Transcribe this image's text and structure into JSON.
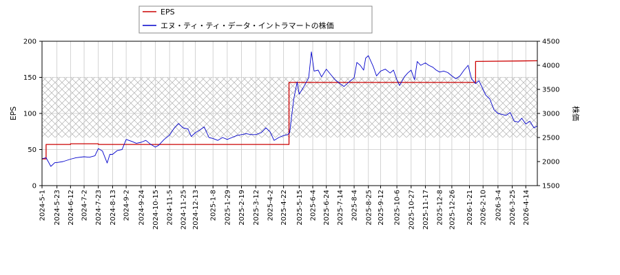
{
  "chart_data": {
    "type": "line",
    "legend": {
      "placement": "top-center",
      "entries": [
        {
          "label": "EPS",
          "color": "#cc0000"
        },
        {
          "label": "エヌ・ティ・ティ・データ・イントラマートの株価",
          "color": "#0000cc"
        }
      ]
    },
    "xlabel": "",
    "y_left": {
      "label": "EPS",
      "range": [
        0,
        200
      ],
      "ticks": [
        "0",
        "50",
        "100",
        "150",
        "200"
      ]
    },
    "y_right": {
      "label": "株価",
      "range": [
        1500,
        4500
      ],
      "ticks": [
        "1500",
        "2000",
        "2500",
        "3000",
        "3500",
        "4000",
        "4500"
      ]
    },
    "x_range": [
      "2024-05-01",
      "2026-05-01"
    ],
    "x_ticks": [
      "2024-5-1",
      "2024-5-23",
      "2024-6-12",
      "2024-7-2",
      "2024-7-23",
      "2024-8-13",
      "2024-9-2",
      "2024-9-24",
      "2024-10-15",
      "2024-11-5",
      "2024-11-25",
      "2024-12-13",
      "2025-1-8",
      "2025-1-29",
      "2025-2-19",
      "2025-3-12",
      "2025-4-2",
      "2025-4-22",
      "2025-5-15",
      "2025-6-4",
      "2025-6-24",
      "2025-7-14",
      "2025-8-4",
      "2025-8-25",
      "2025-9-12",
      "2025-10-6",
      "2025-10-27",
      "2025-11-17",
      "2025-12-8",
      "2025-12-26",
      "2026-1-21",
      "2026-2-10",
      "2026-3-4",
      "2026-3-25",
      "2026-4-14"
    ],
    "grid": true,
    "shaded_band_price": [
      2500,
      3750
    ],
    "series": [
      {
        "name": "EPS",
        "axis": "left",
        "color": "#cc0000",
        "step": true,
        "points": [
          [
            "2024-05-01",
            37
          ],
          [
            "2024-05-07",
            37
          ],
          [
            "2024-05-07",
            57
          ],
          [
            "2024-06-12",
            57
          ],
          [
            "2024-06-12",
            58
          ],
          [
            "2024-07-23",
            58
          ],
          [
            "2024-07-23",
            57
          ],
          [
            "2025-04-30",
            57
          ],
          [
            "2025-04-30",
            143
          ],
          [
            "2026-01-30",
            143
          ],
          [
            "2026-01-30",
            172
          ],
          [
            "2026-05-01",
            173
          ]
        ]
      },
      {
        "name": "エヌ・ティ・ティ・データ・イントラマートの株価",
        "axis": "right",
        "color": "#0000cc",
        "points": [
          [
            "2024-05-01",
            2060
          ],
          [
            "2024-05-07",
            2080
          ],
          [
            "2024-05-14",
            1900
          ],
          [
            "2024-05-20",
            1980
          ],
          [
            "2024-05-23",
            1980
          ],
          [
            "2024-06-01",
            2000
          ],
          [
            "2024-06-12",
            2050
          ],
          [
            "2024-06-20",
            2080
          ],
          [
            "2024-07-02",
            2100
          ],
          [
            "2024-07-10",
            2090
          ],
          [
            "2024-07-18",
            2120
          ],
          [
            "2024-07-23",
            2270
          ],
          [
            "2024-07-29",
            2220
          ],
          [
            "2024-08-05",
            1970
          ],
          [
            "2024-08-09",
            2150
          ],
          [
            "2024-08-13",
            2150
          ],
          [
            "2024-08-20",
            2230
          ],
          [
            "2024-08-27",
            2250
          ],
          [
            "2024-09-02",
            2460
          ],
          [
            "2024-09-10",
            2420
          ],
          [
            "2024-09-17",
            2380
          ],
          [
            "2024-09-24",
            2400
          ],
          [
            "2024-10-01",
            2440
          ],
          [
            "2024-10-08",
            2360
          ],
          [
            "2024-10-15",
            2300
          ],
          [
            "2024-10-20",
            2340
          ],
          [
            "2024-10-28",
            2460
          ],
          [
            "2024-11-05",
            2550
          ],
          [
            "2024-11-12",
            2700
          ],
          [
            "2024-11-18",
            2790
          ],
          [
            "2024-11-25",
            2700
          ],
          [
            "2024-12-02",
            2680
          ],
          [
            "2024-12-07",
            2520
          ],
          [
            "2024-12-13",
            2600
          ],
          [
            "2024-12-20",
            2660
          ],
          [
            "2024-12-26",
            2720
          ],
          [
            "2025-01-02",
            2500
          ],
          [
            "2025-01-08",
            2480
          ],
          [
            "2025-01-15",
            2440
          ],
          [
            "2025-01-22",
            2500
          ],
          [
            "2025-01-29",
            2460
          ],
          [
            "2025-02-05",
            2500
          ],
          [
            "2025-02-12",
            2540
          ],
          [
            "2025-02-19",
            2560
          ],
          [
            "2025-02-26",
            2580
          ],
          [
            "2025-03-05",
            2560
          ],
          [
            "2025-03-12",
            2560
          ],
          [
            "2025-03-20",
            2600
          ],
          [
            "2025-03-27",
            2700
          ],
          [
            "2025-04-02",
            2620
          ],
          [
            "2025-04-08",
            2440
          ],
          [
            "2025-04-15",
            2500
          ],
          [
            "2025-04-22",
            2540
          ],
          [
            "2025-04-28",
            2560
          ],
          [
            "2025-05-01",
            2600
          ],
          [
            "2025-05-07",
            3300
          ],
          [
            "2025-05-12",
            3650
          ],
          [
            "2025-05-15",
            3400
          ],
          [
            "2025-05-22",
            3560
          ],
          [
            "2025-05-29",
            3740
          ],
          [
            "2025-06-02",
            4280
          ],
          [
            "2025-06-06",
            3880
          ],
          [
            "2025-06-12",
            3900
          ],
          [
            "2025-06-17",
            3760
          ],
          [
            "2025-06-24",
            3920
          ],
          [
            "2025-07-01",
            3800
          ],
          [
            "2025-07-07",
            3700
          ],
          [
            "2025-07-14",
            3620
          ],
          [
            "2025-07-20",
            3560
          ],
          [
            "2025-07-28",
            3660
          ],
          [
            "2025-08-04",
            3740
          ],
          [
            "2025-08-08",
            4060
          ],
          [
            "2025-08-13",
            4000
          ],
          [
            "2025-08-18",
            3900
          ],
          [
            "2025-08-21",
            4150
          ],
          [
            "2025-08-25",
            4200
          ],
          [
            "2025-09-01",
            3980
          ],
          [
            "2025-09-06",
            3780
          ],
          [
            "2025-09-12",
            3880
          ],
          [
            "2025-09-19",
            3920
          ],
          [
            "2025-09-26",
            3840
          ],
          [
            "2025-10-01",
            3900
          ],
          [
            "2025-10-06",
            3700
          ],
          [
            "2025-10-10",
            3580
          ],
          [
            "2025-10-17",
            3760
          ],
          [
            "2025-10-22",
            3840
          ],
          [
            "2025-10-27",
            3900
          ],
          [
            "2025-11-01",
            3700
          ],
          [
            "2025-11-05",
            4080
          ],
          [
            "2025-11-10",
            4000
          ],
          [
            "2025-11-17",
            4050
          ],
          [
            "2025-11-22",
            4000
          ],
          [
            "2025-11-28",
            3960
          ],
          [
            "2025-12-03",
            3900
          ],
          [
            "2025-12-08",
            3860
          ],
          [
            "2025-12-14",
            3880
          ],
          [
            "2025-12-20",
            3850
          ],
          [
            "2025-12-26",
            3780
          ],
          [
            "2026-01-01",
            3720
          ],
          [
            "2026-01-07",
            3780
          ],
          [
            "2026-01-13",
            3900
          ],
          [
            "2026-01-19",
            4000
          ],
          [
            "2026-01-24",
            3720
          ],
          [
            "2026-01-30",
            3620
          ],
          [
            "2026-02-04",
            3680
          ],
          [
            "2026-02-10",
            3500
          ],
          [
            "2026-02-14",
            3380
          ],
          [
            "2026-02-20",
            3300
          ],
          [
            "2026-02-26",
            3080
          ],
          [
            "2026-03-04",
            3000
          ],
          [
            "2026-03-10",
            2980
          ],
          [
            "2026-03-16",
            2960
          ],
          [
            "2026-03-22",
            3020
          ],
          [
            "2026-03-28",
            2840
          ],
          [
            "2026-04-03",
            2820
          ],
          [
            "2026-04-08",
            2900
          ],
          [
            "2026-04-14",
            2780
          ],
          [
            "2026-04-20",
            2840
          ],
          [
            "2026-04-26",
            2700
          ],
          [
            "2026-05-01",
            2740
          ]
        ]
      }
    ]
  }
}
